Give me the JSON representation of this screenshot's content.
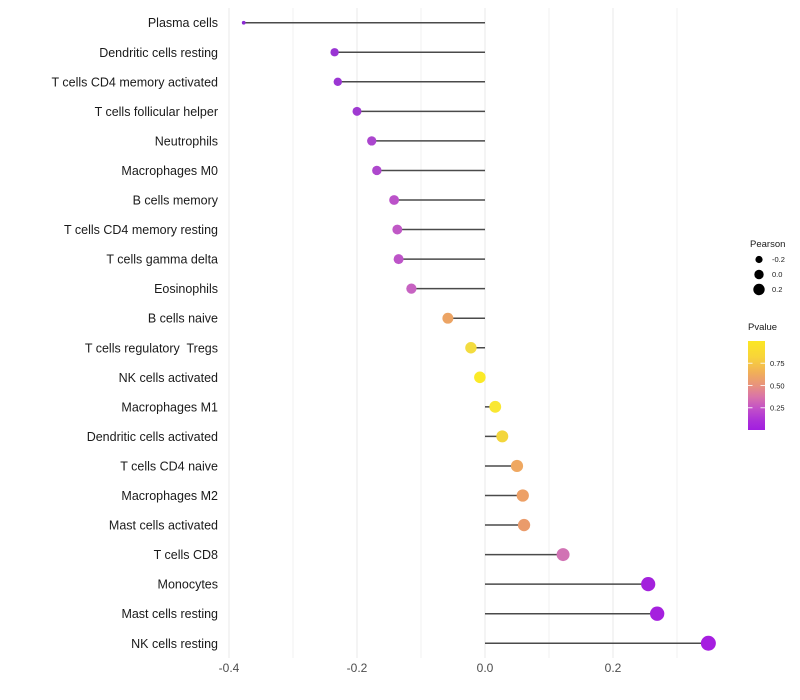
{
  "chart_data": {
    "type": "scatter",
    "subtype": "horizontal-lollipop",
    "title": "",
    "xlabel": "",
    "ylabel": "",
    "x_ticks": [
      "-0.4",
      "-0.2",
      "0.0",
      "0.2"
    ],
    "x_tick_values": [
      -0.4,
      -0.2,
      0.0,
      0.2
    ],
    "x_grid_values": [
      -0.4,
      -0.3,
      -0.2,
      -0.1,
      0.0,
      0.1,
      0.2,
      0.3
    ],
    "xlim": [
      -0.403,
      0.406
    ],
    "grid": "vertical only, light gray, white background",
    "baseline_x": 0.0,
    "stem_color": "#4a4a4a",
    "categories": [
      "Plasma cells",
      "Dendritic cells resting",
      "T cells CD4 memory activated",
      "T cells follicular helper",
      "Neutrophils",
      "Macrophages M0",
      "B cells memory",
      "T cells CD4 memory resting",
      "T cells gamma delta",
      "Eosinophils",
      "B cells naive",
      "T cells regulatory  Tregs",
      "NK cells activated",
      "Macrophages M1",
      "Dendritic cells activated",
      "T cells CD4 naive",
      "Macrophages M2",
      "Mast cells activated",
      "T cells CD8",
      "Monocytes",
      "Mast cells resting",
      "NK cells resting"
    ],
    "series": [
      {
        "name": "Pearson",
        "values": [
          -0.377,
          -0.235,
          -0.23,
          -0.2,
          -0.177,
          -0.169,
          -0.142,
          -0.137,
          -0.135,
          -0.115,
          -0.058,
          -0.022,
          -0.008,
          0.016,
          0.027,
          0.05,
          0.059,
          0.061,
          0.122,
          0.255,
          0.269,
          0.349
        ]
      },
      {
        "name": "Pvalue (estimated from point color)",
        "values": [
          0.06,
          0.12,
          0.12,
          0.14,
          0.18,
          0.19,
          0.24,
          0.26,
          0.25,
          0.29,
          0.55,
          0.78,
          0.88,
          0.85,
          0.79,
          0.54,
          0.52,
          0.5,
          0.35,
          0.1,
          0.09,
          0.08
        ]
      }
    ],
    "point_colors": [
      "#8B2BD3",
      "#9934D3",
      "#9B36D3",
      "#9F3AD1",
      "#AB46CE",
      "#AE48CD",
      "#BB52C9",
      "#C058C6",
      "#BD54C8",
      "#C763C2",
      "#ECA464",
      "#F3DC40",
      "#FBEA27",
      "#F9E732",
      "#F3D63C",
      "#EFA861",
      "#EDA066",
      "#EA9B6B",
      "#D173B4",
      "#A322DC",
      "#A520DE",
      "#A61EE0"
    ],
    "legend": {
      "size": {
        "title": "Pearson",
        "entries": [
          "-0.2",
          "0.0",
          "0.2"
        ],
        "dot_color": "#000000"
      },
      "color": {
        "title": "Pvalue",
        "ticks": [
          "0.75",
          "0.50",
          "0.25"
        ],
        "tick_values": [
          0.75,
          0.5,
          0.25
        ],
        "gradient_top_to_bottom": [
          {
            "offset": 0,
            "color": "#FBE723"
          },
          {
            "offset": 0.18,
            "color": "#F8D43A"
          },
          {
            "offset": 0.35,
            "color": "#F1B057"
          },
          {
            "offset": 0.5,
            "color": "#E8927E"
          },
          {
            "offset": 0.63,
            "color": "#D973A9"
          },
          {
            "offset": 0.76,
            "color": "#C250C8"
          },
          {
            "offset": 0.89,
            "color": "#AC31D8"
          },
          {
            "offset": 1,
            "color": "#A21EE0"
          }
        ]
      }
    },
    "colors": {
      "grid_major": "#e8e8e8",
      "grid_minor": "#f2f2f2",
      "axis_text": "#4d4d4d",
      "label_text": "#1a1a1a"
    }
  }
}
